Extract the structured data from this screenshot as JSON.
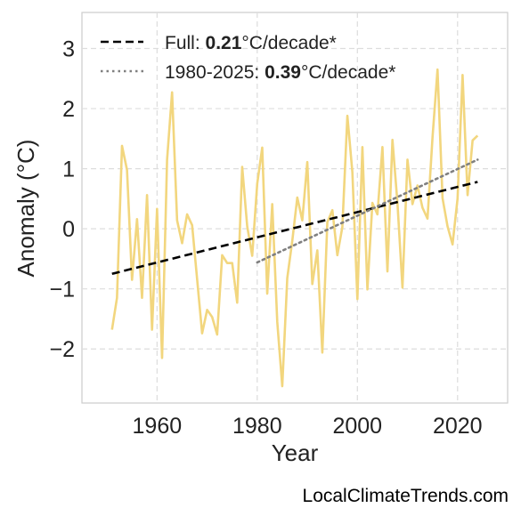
{
  "chart_data": {
    "type": "line",
    "xlabel": "Year",
    "ylabel": "Anomaly (°C)",
    "xlim": [
      1945,
      2030
    ],
    "ylim": [
      -2.9,
      3.6
    ],
    "xticks": [
      1960,
      1980,
      2000,
      2020
    ],
    "yticks": [
      -2,
      -1,
      0,
      1,
      2,
      3
    ],
    "ytick_labels": [
      "−2",
      "−1",
      "0",
      "1",
      "2",
      "3"
    ],
    "grid": true,
    "legend_position": "upper left",
    "series": [
      {
        "color": "#f2d67e",
        "style": "solid",
        "x": [
          1951,
          1952,
          1953,
          1954,
          1955,
          1956,
          1957,
          1958,
          1959,
          1960,
          1961,
          1962,
          1963,
          1964,
          1965,
          1966,
          1967,
          1968,
          1969,
          1970,
          1971,
          1972,
          1973,
          1974,
          1975,
          1976,
          1977,
          1978,
          1979,
          1980,
          1981,
          1982,
          1983,
          1984,
          1985,
          1986,
          1987,
          1988,
          1989,
          1990,
          1991,
          1992,
          1993,
          1994,
          1995,
          1996,
          1997,
          1998,
          1999,
          2000,
          2001,
          2002,
          2003,
          2004,
          2005,
          2006,
          2007,
          2008,
          2009,
          2010,
          2011,
          2012,
          2013,
          2014,
          2015,
          2016,
          2017,
          2018,
          2019,
          2020,
          2021,
          2022,
          2023,
          2024
        ],
        "y": [
          -1.68,
          -1.15,
          1.38,
          0.98,
          -0.85,
          0.16,
          -1.15,
          0.56,
          -1.68,
          0.33,
          -2.15,
          1.15,
          2.27,
          0.14,
          -0.24,
          0.24,
          0.06,
          -0.84,
          -1.74,
          -1.35,
          -1.47,
          -1.76,
          -0.44,
          -0.57,
          -0.57,
          -1.23,
          1.03,
          0.04,
          -0.45,
          0.75,
          1.35,
          -1.08,
          0.41,
          -1.55,
          -2.62,
          -0.82,
          -0.2,
          0.52,
          0.14,
          1.11,
          -0.92,
          -0.36,
          -2.06,
          0.11,
          0.31,
          -0.44,
          0.03,
          1.88,
          0.94,
          -1.17,
          1.36,
          -1.01,
          0.43,
          0.24,
          1.36,
          -0.71,
          1.48,
          0.43,
          -0.98,
          1.15,
          0.41,
          0.72,
          0.35,
          0.17,
          1.52,
          2.65,
          0.51,
          0.04,
          -0.26,
          0.5,
          2.56,
          0.56,
          1.47,
          1.55
        ]
      },
      {
        "color": "#000000",
        "style": "dashed",
        "x": [
          1951,
          2024
        ],
        "y": [
          -0.75,
          0.78
        ]
      },
      {
        "color": "#808080",
        "style": "dotted",
        "x": [
          1980,
          2024
        ],
        "y": [
          -0.56,
          1.15
        ]
      }
    ],
    "legend": [
      {
        "prefix": "Full: ",
        "bold": "0.21",
        "suffix": "°C/decade*",
        "style": "dashed",
        "color": "#000000"
      },
      {
        "prefix": "1980-2025: ",
        "bold": "0.39",
        "suffix": "°C/decade*",
        "style": "dotted",
        "color": "#808080"
      }
    ]
  },
  "watermark": "LocalClimateTrends.com"
}
